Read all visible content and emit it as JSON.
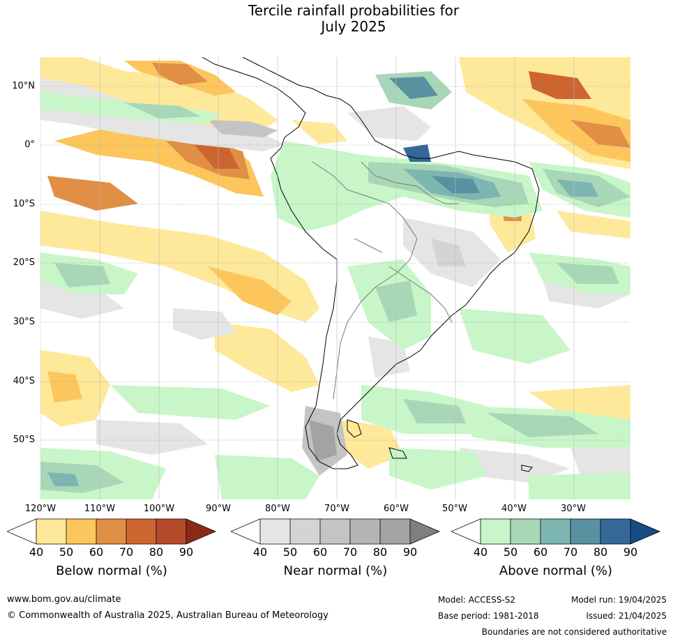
{
  "title_line1": "Tercile rainfall probabilities for",
  "title_line2": "July 2025",
  "map": {
    "lat_labels": [
      "10°N",
      "0°",
      "10°S",
      "20°S",
      "30°S",
      "40°S",
      "50°S"
    ],
    "lon_labels": [
      "120°W",
      "110°W",
      "100°W",
      "90°W",
      "80°W",
      "70°W",
      "60°W",
      "50°W",
      "40°W",
      "30°W"
    ],
    "color_legend": "tercile probability shading over the South American region"
  },
  "colorbars": [
    {
      "label": "Below normal (%)",
      "ticks": [
        "40",
        "50",
        "60",
        "70",
        "80",
        "90"
      ],
      "colors": [
        "#ffffff",
        "#fee89a",
        "#fdc65c",
        "#e08f45",
        "#cc6530",
        "#b44a29",
        "#8c2a17"
      ]
    },
    {
      "label": "Near normal (%)",
      "ticks": [
        "40",
        "50",
        "60",
        "70",
        "80",
        "90"
      ],
      "colors": [
        "#ffffff",
        "#e5e5e5",
        "#d4d4d4",
        "#c4c4c4",
        "#b4b4b4",
        "#a3a3a3",
        "#7f7f7f"
      ]
    },
    {
      "label": "Above normal (%)",
      "ticks": [
        "40",
        "50",
        "60",
        "70",
        "80",
        "90"
      ],
      "colors": [
        "#ffffff",
        "#c8f6c8",
        "#a8d7b8",
        "#7db6b0",
        "#5a91a0",
        "#356899",
        "#164b85"
      ]
    }
  ],
  "footer": {
    "website": "www.bom.gov.au/climate",
    "copyright": "© Commonwealth of Australia 2025, Australian Bureau of Meteorology",
    "model": "Model: ACCESS-S2",
    "base_period": "Base period: 1981-2018",
    "model_run": "Model run: 19/04/2025",
    "issued": "Issued: 21/04/2025",
    "disclaimer": "Boundaries are not considered authoritative"
  }
}
